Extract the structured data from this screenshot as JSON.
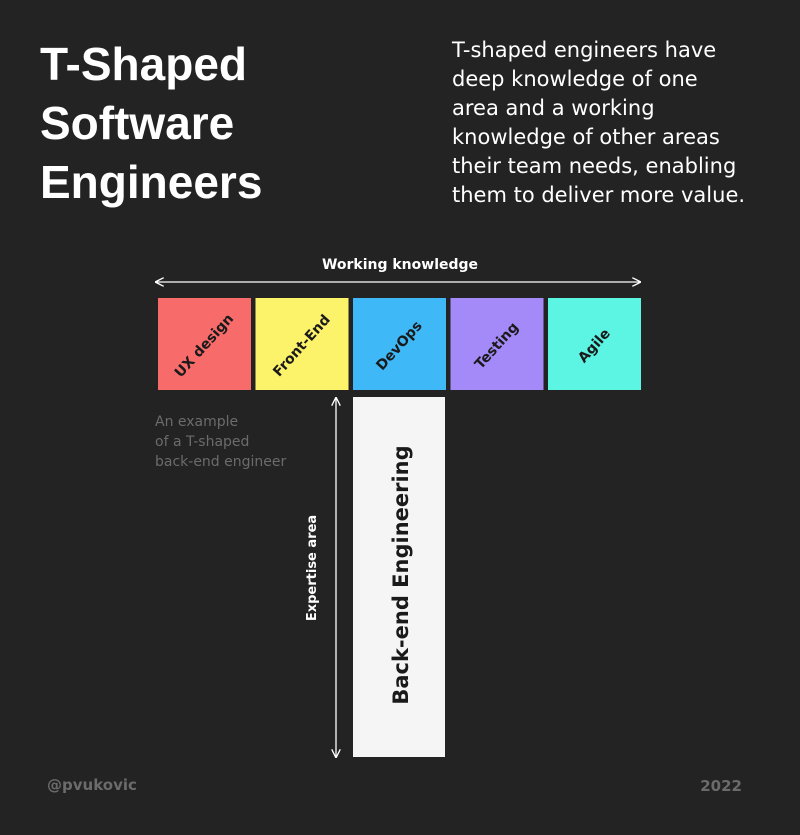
{
  "header": {
    "title_lines": [
      "T-Shaped",
      "Software",
      "Engineers"
    ],
    "description_lines": [
      "T-shaped engineers have",
      "deep knowledge of one",
      "area and a working",
      "knowledge of other areas",
      "their team needs, enabling",
      "them to deliver more value."
    ]
  },
  "diagram": {
    "working_label": "Working knowledge",
    "areas": [
      {
        "label": "UX design",
        "color": "#f76b6b"
      },
      {
        "label": "Front-End",
        "color": "#fdf36b"
      },
      {
        "label": "DevOps",
        "color": "#3fb8f7"
      },
      {
        "label": "Testing",
        "color": "#a48af8"
      },
      {
        "label": "Agile",
        "color": "#5cf5e4"
      }
    ],
    "note_lines": [
      "An example",
      "of a T-shaped",
      "back-end engineer"
    ],
    "expertise_label": "Expertise area",
    "stem_label": "Back-end  Engineering"
  },
  "footer": {
    "handle": "@pvukovic",
    "year": "2022"
  }
}
